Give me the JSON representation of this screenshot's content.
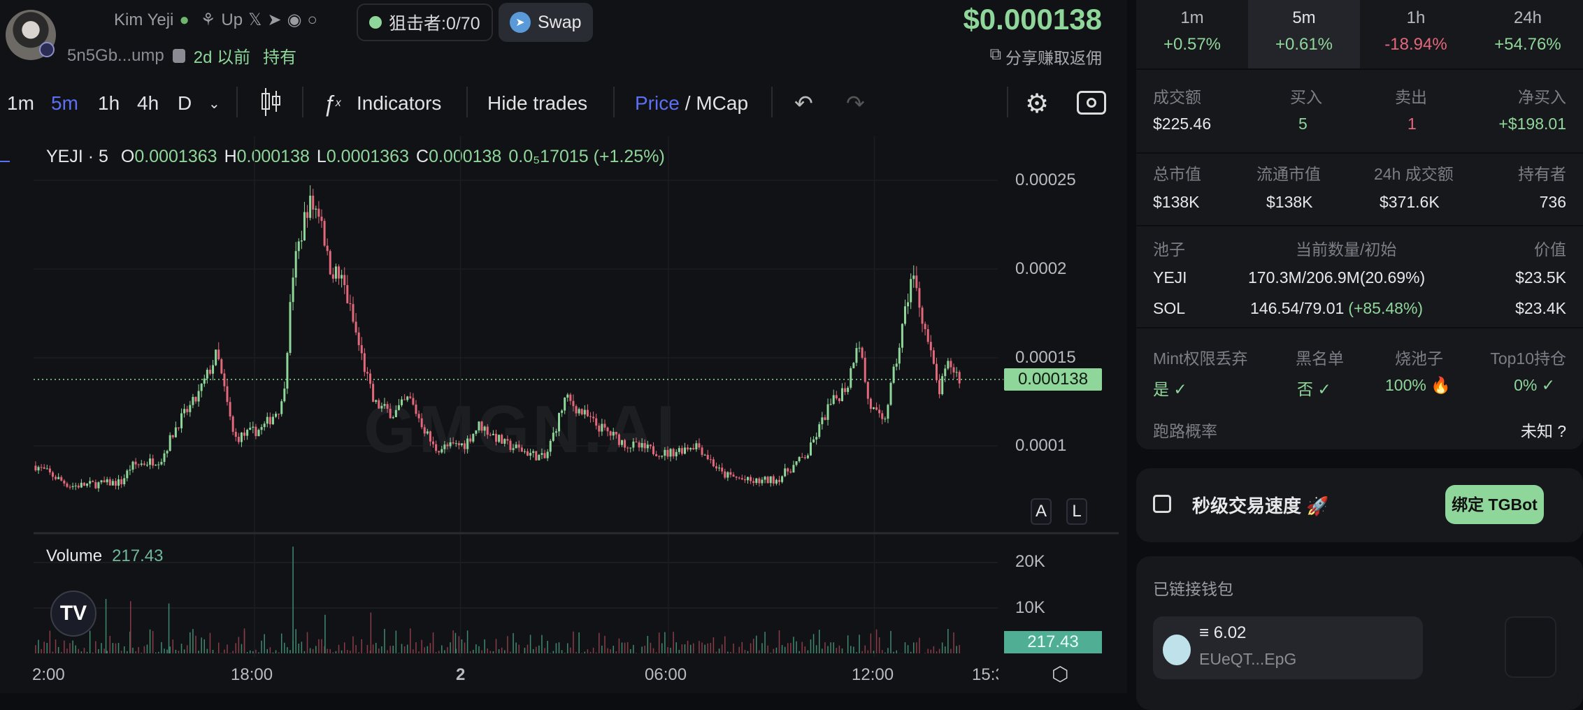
{
  "token": {
    "name": "Kim Yeji",
    "up_label": "Up",
    "address": "5n5Gb...ump",
    "age": "2d 以前",
    "hold_label": "持有",
    "sniper": "狙击者:0/70",
    "swap_label": "Swap",
    "price": "$0.000138",
    "share_label": "分享赚取返佣"
  },
  "toolbar": {
    "intervals": [
      "1m",
      "5m",
      "1h",
      "4h",
      "D"
    ],
    "active_interval": "5m",
    "indicators_label": "Indicators",
    "hide_trades_label": "Hide trades",
    "price_label": "Price",
    "mcap_label": "/ MCap"
  },
  "legend": {
    "symbol": "YEJI · 5",
    "o_label": "O",
    "o": "0.0001363",
    "h_label": "H",
    "h": "0.000138",
    "l_label": "L",
    "l": "0.0001363",
    "c_label": "C",
    "c": "0.000138",
    "change": "0.0₅17015 (+1.25%)",
    "volume_label": "Volume",
    "volume_value": "217.43"
  },
  "watermark": "GMGN.AI",
  "chart_data": {
    "type": "candlestick",
    "interval": "5m",
    "price_ticks": [
      "0.00025",
      "0.0002",
      "0.00015",
      "0.0001"
    ],
    "price_range": [
      0.0001,
      0.00025
    ],
    "current_price": "0.000138",
    "time_ticks": [
      "2:00",
      "18:00",
      "2",
      "06:00",
      "12:00",
      "15:3"
    ],
    "volume_ticks": [
      "20K",
      "10K"
    ],
    "current_volume": "217.43",
    "approx_price_path": [
      [
        "11:34",
        8.88e-05
      ],
      [
        "12:35",
        7.73e-05
      ],
      [
        "14:04",
        7.95e-05
      ],
      [
        "14:21",
        8.86e-05
      ],
      [
        "15:14",
        9.26e-05
      ],
      [
        "15:41",
        0.000112
      ],
      [
        "16:16",
        0.000127
      ],
      [
        "16:51",
        0.000152
      ],
      [
        "17:21",
        0.000104
      ],
      [
        "18:11",
        0.00011
      ],
      [
        "18:46",
        0.000124
      ],
      [
        "19:04",
        0.000198
      ],
      [
        "19:30",
        0.000237
      ],
      [
        "19:53",
        0.000232
      ],
      [
        "20:05",
        0.000203
      ],
      [
        "20:32",
        0.000192
      ],
      [
        "20:58",
        0.000158
      ],
      [
        "21:25",
        0.000124
      ],
      [
        "22:00",
        0.000118
      ],
      [
        "22:27",
        0.000127
      ],
      [
        "23:11",
        9.83e-05
      ],
      [
        "00:04",
        0.000101
      ],
      [
        "00:30",
        0.000112
      ],
      [
        "01:14",
        0.000101
      ],
      [
        "02:25",
        9.26e-05
      ],
      [
        "03:00",
        0.000127
      ],
      [
        "03:53",
        0.000112
      ],
      [
        "04:46",
        0.000101
      ],
      [
        "05:57",
        9.55e-05
      ],
      [
        "06:50",
        0.000101
      ],
      [
        "07:34",
        8.4e-05
      ],
      [
        "08:27",
        7.95e-05
      ],
      [
        "09:11",
        8.12e-05
      ],
      [
        "10:04",
        9.55e-05
      ],
      [
        "10:39",
        0.000121
      ],
      [
        "11:14",
        0.000135
      ],
      [
        "11:32",
        0.000163
      ],
      [
        "11:50",
        0.000124
      ],
      [
        "12:16",
        0.000112
      ],
      [
        "12:43",
        0.000155
      ],
      [
        "13:06",
        0.000198
      ],
      [
        "13:27",
        0.000169
      ],
      [
        "13:53",
        0.00013
      ],
      [
        "14:11",
        0.000147
      ],
      [
        "14:29",
        0.000138
      ]
    ],
    "approx_volume_spikes": [
      [
        "15:27",
        11000
      ],
      [
        "17:39",
        5500
      ],
      [
        "19:04",
        23500
      ],
      [
        "20:00",
        8500
      ],
      [
        "21:20",
        9000
      ],
      [
        "23:48",
        4500
      ],
      [
        "13:37",
        12000
      ],
      [
        "14:20",
        11500
      ]
    ],
    "colors": {
      "up": "#8fd69a",
      "down": "#e4687b"
    }
  },
  "chart_buttons": {
    "auto": "A",
    "log": "L"
  },
  "stats": {
    "timeframes": [
      {
        "label": "1m",
        "value": "+0.57%",
        "dir": "up"
      },
      {
        "label": "5m",
        "value": "+0.61%",
        "dir": "up"
      },
      {
        "label": "1h",
        "value": "-18.94%",
        "dir": "down"
      },
      {
        "label": "24h",
        "value": "+54.76%",
        "dir": "up"
      }
    ],
    "trade_labels": [
      "成交额",
      "买入",
      "卖出",
      "净买入"
    ],
    "trade_values": [
      "$225.46",
      "5",
      "1",
      "+$198.01"
    ],
    "market_labels": [
      "总市值",
      "流通市值",
      "24h 成交额",
      "持有者"
    ],
    "market_values": [
      "$138K",
      "$138K",
      "$371.6K",
      "736"
    ],
    "pool_headers": [
      "池子",
      "当前数量/初始",
      "价值"
    ],
    "pool_rows": [
      {
        "name": "YEJI",
        "amount": "170.3M/206.9M(20.69%)",
        "change": "",
        "value": "$23.5K"
      },
      {
        "name": "SOL",
        "amount": "146.54/79.01",
        "change": "(+85.48%)",
        "value": "$23.4K"
      }
    ],
    "security_labels": [
      "Mint权限丢弃",
      "黑名单",
      "烧池子",
      "Top10持仓"
    ],
    "security_values": [
      "是",
      "否",
      "100%",
      "0%"
    ],
    "rug_label": "跑路概率",
    "rug_value": "未知"
  },
  "tgbot": {
    "title": "秒级交易速度",
    "button": "绑定 TGBot"
  },
  "wallet": {
    "title": "已链接钱包",
    "balance": "6.02",
    "address": "EUeQT...EpG"
  }
}
